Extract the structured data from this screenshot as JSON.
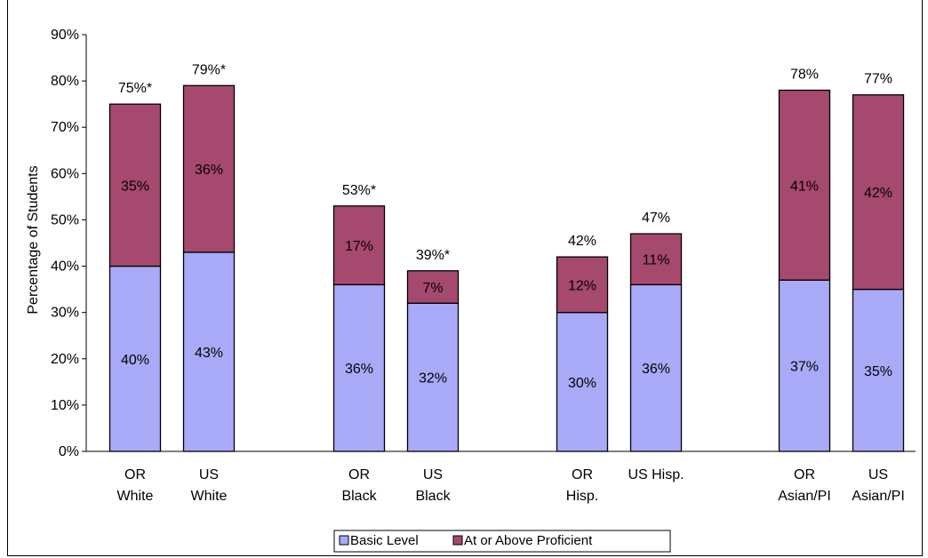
{
  "chart_data": {
    "type": "bar",
    "stacked": true,
    "ylabel": "Percentage of Students",
    "xlabel": "",
    "ylim": [
      0,
      90
    ],
    "ytick_step": 10,
    "ytick_labels": [
      "0%",
      "10%",
      "20%",
      "30%",
      "40%",
      "50%",
      "60%",
      "70%",
      "80%",
      "90%"
    ],
    "groups": [
      {
        "categories": [
          [
            "OR",
            "White"
          ],
          [
            "US",
            "White"
          ]
        ]
      },
      {
        "categories": [
          [
            "OR",
            "Black"
          ],
          [
            "US",
            "Black"
          ]
        ]
      },
      {
        "categories": [
          [
            "OR",
            "Hisp."
          ],
          [
            "US Hisp."
          ]
        ]
      },
      {
        "categories": [
          [
            "OR",
            "Asian/PI"
          ],
          [
            "US",
            "Asian/PI"
          ]
        ]
      }
    ],
    "series": [
      {
        "name": "Basic Level",
        "color": "#a9aaf7",
        "values": [
          40,
          43,
          36,
          32,
          30,
          36,
          37,
          35
        ],
        "labels": [
          "40%",
          "43%",
          "36%",
          "32%",
          "30%",
          "36%",
          "37%",
          "35%"
        ]
      },
      {
        "name": "At or Above Proficient",
        "color": "#a6496e",
        "values": [
          35,
          36,
          17,
          7,
          12,
          11,
          41,
          42
        ],
        "labels": [
          "35%",
          "36%",
          "17%",
          "7%",
          "12%",
          "11%",
          "41%",
          "42%"
        ]
      }
    ],
    "totals": [
      75,
      79,
      53,
      39,
      42,
      47,
      78,
      77
    ],
    "total_labels": [
      "75%*",
      "79%*",
      "53%*",
      "39%*",
      "42%",
      "47%",
      "78%",
      "77%"
    ],
    "grid": false,
    "legend_position": "bottom"
  }
}
